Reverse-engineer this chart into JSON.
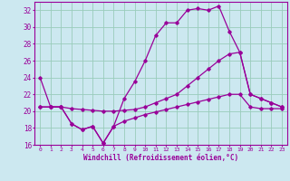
{
  "xlabel": "Windchill (Refroidissement éolien,°C)",
  "bg_color": "#cce8f0",
  "line_color": "#990099",
  "grid_color": "#99ccbb",
  "x": [
    0,
    1,
    2,
    3,
    4,
    5,
    6,
    7,
    8,
    9,
    10,
    11,
    12,
    13,
    14,
    15,
    16,
    17,
    18,
    19,
    20,
    21,
    22,
    23
  ],
  "line_top": [
    24.0,
    20.5,
    20.5,
    18.5,
    17.8,
    18.2,
    16.2,
    18.2,
    21.5,
    23.5,
    26.0,
    29.0,
    30.5,
    30.5,
    32.0,
    32.2,
    32.0,
    32.5,
    29.5,
    27.0,
    22.0,
    21.5,
    21.0,
    20.5
  ],
  "line_mid": [
    20.5,
    20.5,
    20.5,
    20.3,
    20.2,
    20.1,
    20.0,
    20.0,
    20.1,
    20.2,
    20.5,
    21.0,
    21.5,
    22.0,
    23.0,
    24.0,
    25.0,
    26.0,
    26.8,
    27.0,
    22.0,
    21.5,
    21.0,
    20.5
  ],
  "line_bot": [
    20.5,
    20.5,
    20.5,
    18.5,
    17.8,
    18.2,
    16.2,
    18.2,
    18.8,
    19.2,
    19.6,
    19.9,
    20.2,
    20.5,
    20.8,
    21.1,
    21.4,
    21.7,
    22.0,
    22.0,
    20.5,
    20.3,
    20.3,
    20.3
  ],
  "ylim": [
    16,
    33
  ],
  "yticks": [
    16,
    18,
    20,
    22,
    24,
    26,
    28,
    30,
    32
  ],
  "xlim": [
    -0.5,
    23.5
  ]
}
